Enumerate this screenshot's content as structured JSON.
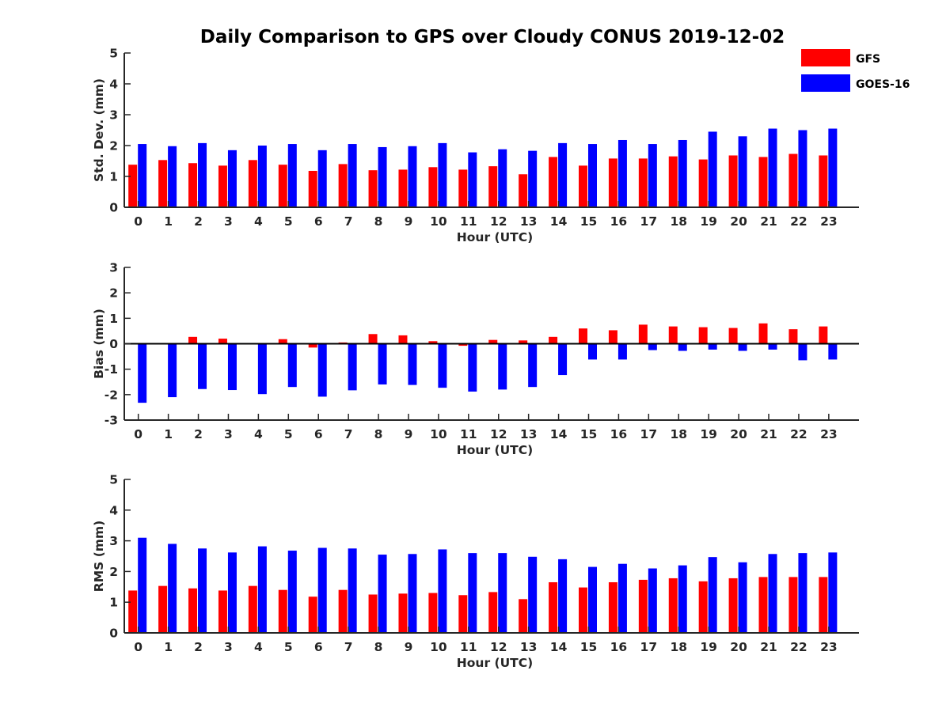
{
  "figure": {
    "title": "Daily Comparison to GPS over Cloudy CONUS 2019-12-02"
  },
  "legend": {
    "position": "top-right",
    "items": [
      {
        "label": "GFS",
        "color": "#ff0000"
      },
      {
        "label": "GOES-16",
        "color": "#0000ff"
      }
    ]
  },
  "chart_data": [
    {
      "type": "bar",
      "title": "Daily Comparison to GPS over Cloudy CONUS 2019-12-02",
      "xlabel": "Hour (UTC)",
      "ylabel": "Std. Dev. (mm)",
      "ylim": [
        0,
        5
      ],
      "yticks": [
        0,
        1,
        2,
        3,
        4,
        5
      ],
      "grid": false,
      "categories": [
        "0",
        "1",
        "2",
        "3",
        "4",
        "5",
        "6",
        "7",
        "8",
        "9",
        "10",
        "11",
        "12",
        "13",
        "14",
        "15",
        "16",
        "17",
        "18",
        "19",
        "20",
        "21",
        "22",
        "23"
      ],
      "series": [
        {
          "name": "GFS",
          "color": "#ff0000",
          "values": [
            1.38,
            1.53,
            1.43,
            1.35,
            1.53,
            1.38,
            1.18,
            1.4,
            1.2,
            1.22,
            1.3,
            1.22,
            1.33,
            1.07,
            1.63,
            1.35,
            1.58,
            1.58,
            1.65,
            1.55,
            1.68,
            1.63,
            1.73,
            1.68
          ]
        },
        {
          "name": "GOES-16",
          "color": "#0000ff",
          "values": [
            2.05,
            1.98,
            2.08,
            1.85,
            2.0,
            2.05,
            1.85,
            2.05,
            1.95,
            1.98,
            2.08,
            1.78,
            1.88,
            1.83,
            2.08,
            2.05,
            2.18,
            2.05,
            2.18,
            2.45,
            2.3,
            2.55,
            2.5,
            2.55
          ]
        }
      ]
    },
    {
      "type": "bar",
      "xlabel": "Hour (UTC)",
      "ylabel": "Bias (mm)",
      "ylim": [
        -3,
        3
      ],
      "yticks": [
        -3,
        -2,
        -1,
        0,
        1,
        2,
        3
      ],
      "grid": false,
      "categories": [
        "0",
        "1",
        "2",
        "3",
        "4",
        "5",
        "6",
        "7",
        "8",
        "9",
        "10",
        "11",
        "12",
        "13",
        "14",
        "15",
        "16",
        "17",
        "18",
        "19",
        "20",
        "21",
        "22",
        "23"
      ],
      "series": [
        {
          "name": "GFS",
          "color": "#ff0000",
          "values": [
            0.02,
            0.03,
            0.27,
            0.2,
            0.01,
            0.18,
            -0.15,
            0.05,
            0.38,
            0.33,
            0.1,
            -0.08,
            0.15,
            0.13,
            0.27,
            0.6,
            0.53,
            0.75,
            0.68,
            0.65,
            0.62,
            0.8,
            0.57,
            0.68
          ]
        },
        {
          "name": "GOES-16",
          "color": "#0000ff",
          "values": [
            -2.32,
            -2.1,
            -1.78,
            -1.82,
            -1.98,
            -1.7,
            -2.08,
            -1.83,
            -1.6,
            -1.62,
            -1.73,
            -1.88,
            -1.8,
            -1.7,
            -1.23,
            -0.62,
            -0.62,
            -0.25,
            -0.28,
            -0.23,
            -0.28,
            -0.23,
            -0.65,
            -0.62
          ]
        }
      ]
    },
    {
      "type": "bar",
      "xlabel": "Hour (UTC)",
      "ylabel": "RMS (mm)",
      "ylim": [
        0,
        5
      ],
      "yticks": [
        0,
        1,
        2,
        3,
        4,
        5
      ],
      "grid": false,
      "categories": [
        "0",
        "1",
        "2",
        "3",
        "4",
        "5",
        "6",
        "7",
        "8",
        "9",
        "10",
        "11",
        "12",
        "13",
        "14",
        "15",
        "16",
        "17",
        "18",
        "19",
        "20",
        "21",
        "22",
        "23"
      ],
      "series": [
        {
          "name": "GFS",
          "color": "#ff0000",
          "values": [
            1.38,
            1.53,
            1.45,
            1.38,
            1.53,
            1.4,
            1.18,
            1.4,
            1.25,
            1.28,
            1.3,
            1.23,
            1.33,
            1.1,
            1.65,
            1.48,
            1.65,
            1.73,
            1.78,
            1.68,
            1.78,
            1.82,
            1.82,
            1.82
          ]
        },
        {
          "name": "GOES-16",
          "color": "#0000ff",
          "values": [
            3.1,
            2.9,
            2.75,
            2.62,
            2.82,
            2.68,
            2.77,
            2.75,
            2.55,
            2.57,
            2.72,
            2.6,
            2.6,
            2.48,
            2.4,
            2.15,
            2.25,
            2.1,
            2.2,
            2.47,
            2.3,
            2.57,
            2.6,
            2.62
          ]
        }
      ]
    }
  ]
}
